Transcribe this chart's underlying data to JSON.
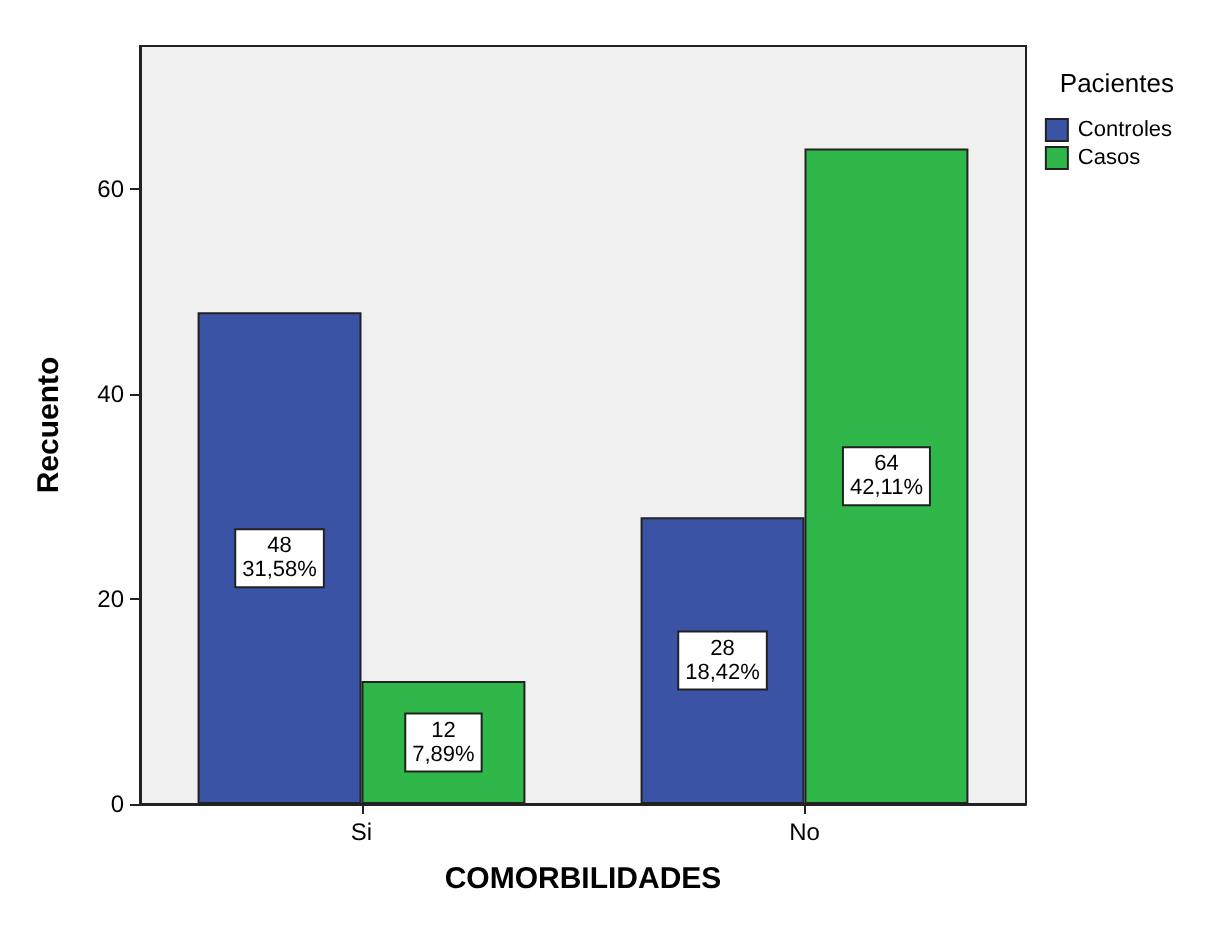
{
  "chart_data": {
    "type": "bar",
    "xlabel": "COMORBILIDADES",
    "ylabel": "Recuento",
    "legend_title": "Pacientes",
    "categories": [
      "Si",
      "No"
    ],
    "series": [
      {
        "name": "Controles",
        "color": "#3a53a4",
        "values": [
          48,
          28
        ],
        "value_labels": [
          "48\n31,58%",
          "28\n18,42%"
        ]
      },
      {
        "name": "Casos",
        "color": "#2fb74a",
        "values": [
          12,
          64
        ],
        "value_labels": [
          "12\n7,89%",
          "64\n42,11%"
        ]
      }
    ],
    "ylim": [
      0,
      74
    ],
    "yticks": [
      0,
      20,
      40,
      60
    ],
    "grid": false,
    "legend": "top right"
  }
}
